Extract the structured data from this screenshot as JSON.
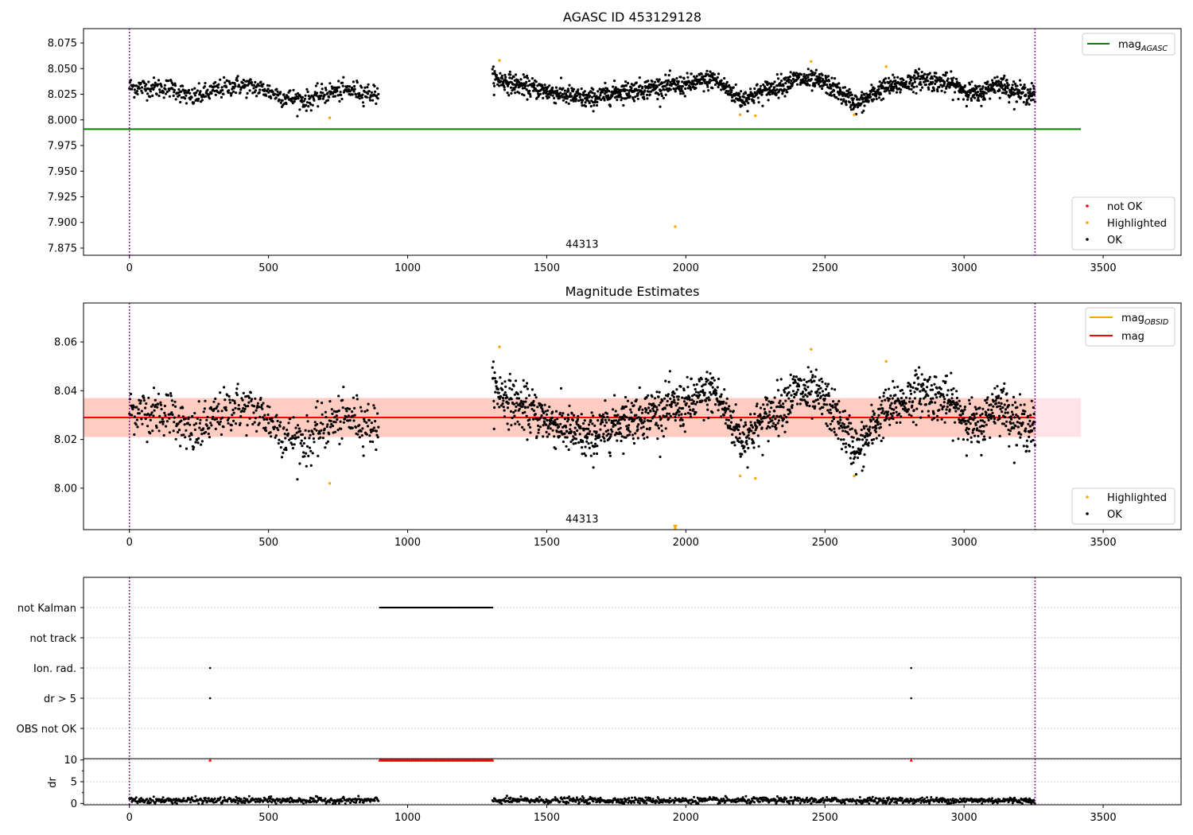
{
  "colors": {
    "ok": "#000000",
    "highlighted": "#ffa500",
    "not_ok": "#ff0000",
    "mag_agasc": "#008000",
    "mag_obsid": "#ffa500",
    "mag": "#ff0000",
    "obs_boundary": "#800080",
    "band_outer": "#ffc0cb",
    "band_inner": "#ffa07a",
    "grid": "#b0b0b0"
  },
  "chart_data": [
    {
      "id": "top",
      "type": "scatter",
      "title": "AGASC ID 453129128",
      "xlabel": "",
      "ylabel": "",
      "xlim": [
        -165,
        3780
      ],
      "ylim": [
        7.868,
        8.089
      ],
      "xticks": [
        0,
        500,
        1000,
        1500,
        2000,
        2500,
        3000,
        3500
      ],
      "yticks": [
        7.875,
        7.9,
        7.925,
        7.95,
        7.975,
        8.0,
        8.025,
        8.05,
        8.075
      ],
      "ytick_decimals": 3,
      "vlines": [
        0,
        3255
      ],
      "obsid_label": {
        "text": "44313",
        "x": 1627,
        "y": 7.874
      },
      "hlines": [
        {
          "name": "mag_agasc",
          "value": 7.991,
          "x": [
            -165,
            3420
          ]
        }
      ],
      "ok_series": {
        "segments": [
          {
            "x_start": 0,
            "x_end": 895,
            "n": 520,
            "trend": [
              [
                0,
                8.032
              ],
              [
                160,
                8.031
              ],
              [
                220,
                8.021
              ],
              [
                300,
                8.028
              ],
              [
                380,
                8.034
              ],
              [
                470,
                8.031
              ],
              [
                560,
                8.022
              ],
              [
                640,
                8.019
              ],
              [
                720,
                8.027
              ],
              [
                800,
                8.029
              ],
              [
                895,
                8.025
              ]
            ],
            "noise": 0.0048
          },
          {
            "x_start": 1305,
            "x_end": 3255,
            "n": 1700,
            "trend": [
              [
                1305,
                8.041
              ],
              [
                1400,
                8.034
              ],
              [
                1500,
                8.028
              ],
              [
                1650,
                8.02
              ],
              [
                1750,
                8.027
              ],
              [
                1900,
                8.032
              ],
              [
                2000,
                8.034
              ],
              [
                2100,
                8.04
              ],
              [
                2200,
                8.02
              ],
              [
                2300,
                8.03
              ],
              [
                2400,
                8.04
              ],
              [
                2500,
                8.036
              ],
              [
                2620,
                8.015
              ],
              [
                2700,
                8.03
              ],
              [
                2850,
                8.04
              ],
              [
                2950,
                8.035
              ],
              [
                3050,
                8.024
              ],
              [
                3120,
                8.036
              ],
              [
                3200,
                8.026
              ],
              [
                3255,
                8.025
              ]
            ],
            "noise": 0.0048
          }
        ]
      },
      "highlighted": [
        [
          720,
          8.002
        ],
        [
          1330,
          8.058
        ],
        [
          1962,
          7.896
        ],
        [
          2195,
          8.005
        ],
        [
          2250,
          8.004
        ],
        [
          2450,
          8.057
        ],
        [
          2605,
          8.005
        ],
        [
          2720,
          8.052
        ]
      ],
      "legend_lines": [
        {
          "label": "mag",
          "sub": "AGASC",
          "color_key": "mag_agasc"
        }
      ],
      "legend_points": [
        {
          "label": "not OK",
          "color_key": "not_ok"
        },
        {
          "label": "Highlighted",
          "color_key": "highlighted"
        },
        {
          "label": "OK",
          "color_key": "ok"
        }
      ]
    },
    {
      "id": "middle",
      "type": "scatter",
      "title": "Magnitude Estimates",
      "xlabel": "",
      "ylabel": "",
      "xlim": [
        -165,
        3780
      ],
      "ylim": [
        7.983,
        8.076
      ],
      "xticks": [
        0,
        500,
        1000,
        1500,
        2000,
        2500,
        3000,
        3500
      ],
      "yticks": [
        8.0,
        8.02,
        8.04,
        8.06
      ],
      "ytick_decimals": 2,
      "vlines": [
        0,
        3255
      ],
      "obsid_label": {
        "text": "44313",
        "x": 1627,
        "y": 7.9865
      },
      "band_outer": {
        "low": 8.021,
        "high": 8.037,
        "x": [
          -165,
          3420
        ]
      },
      "band_inner": {
        "low": 8.021,
        "high": 8.037,
        "x": [
          -165,
          3255
        ]
      },
      "hlines": [
        {
          "name": "mag",
          "value": 8.029,
          "x": [
            -165,
            3255
          ]
        }
      ],
      "ok_series": "same_as_top",
      "highlighted": [
        [
          720,
          8.002
        ],
        [
          1330,
          8.058
        ],
        [
          1962,
          7.983
        ],
        [
          2195,
          8.005
        ],
        [
          2250,
          8.004
        ],
        [
          2450,
          8.057
        ],
        [
          2605,
          8.005
        ],
        [
          2720,
          8.052
        ]
      ],
      "legend_lines": [
        {
          "label": "mag",
          "sub": "OBSID",
          "color_key": "mag_obsid"
        },
        {
          "label": "mag",
          "sub": "",
          "color_key": "mag"
        }
      ],
      "legend_points": [
        {
          "label": "Highlighted",
          "color_key": "highlighted"
        },
        {
          "label": "OK",
          "color_key": "ok"
        }
      ]
    },
    {
      "id": "flags",
      "type": "scatter",
      "title": "",
      "xlim": [
        -165,
        3780
      ],
      "categories": [
        "not Kalman",
        "not track",
        "Ion. rad.",
        "dr > 5",
        "OBS not OK"
      ],
      "flag_points": {
        "not Kalman": {
          "range": [
            900,
            1305
          ]
        },
        "not track": {
          "points": []
        },
        "Ion. rad.": {
          "points": [
            290,
            2810
          ]
        },
        "dr > 5": {
          "points": [
            290,
            2810
          ]
        },
        "OBS not OK": {
          "points": []
        }
      },
      "vlines": [
        0,
        3255
      ]
    },
    {
      "id": "dr",
      "type": "scatter",
      "title": "",
      "ylabel": "dr",
      "xlim": [
        -165,
        3780
      ],
      "ylim": [
        -0.3,
        10.3
      ],
      "xticks": [
        0,
        500,
        1000,
        1500,
        2000,
        2500,
        3000,
        3500
      ],
      "yticks": [
        0,
        5,
        10
      ],
      "dr_segments": [
        {
          "x_start": 0,
          "x_end": 895,
          "n": 400,
          "level": 0.7
        },
        {
          "x_start": 1305,
          "x_end": 3255,
          "n": 900,
          "level": 0.7
        }
      ],
      "clipped_points": {
        "range": [
          900,
          1305
        ],
        "singles": [
          290,
          2810
        ],
        "value": 10
      },
      "vlines": [
        0,
        3255
      ]
    }
  ]
}
